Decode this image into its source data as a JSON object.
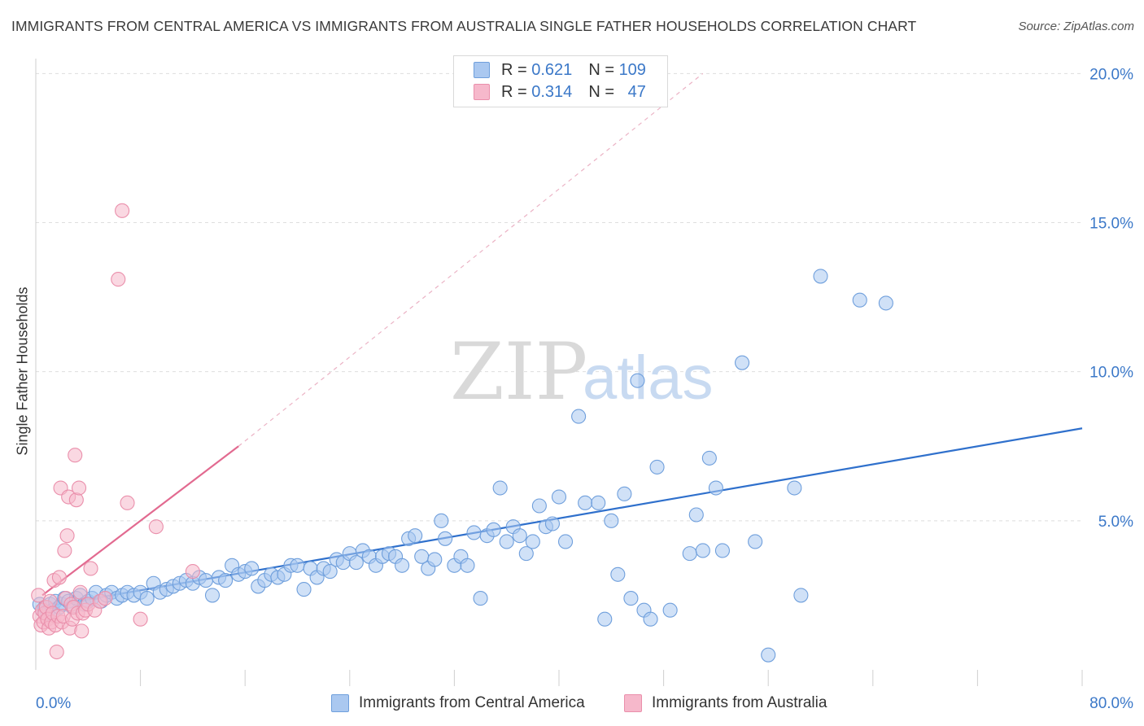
{
  "header": {
    "title": "IMMIGRANTS FROM CENTRAL AMERICA VS IMMIGRANTS FROM AUSTRALIA SINGLE FATHER HOUSEHOLDS CORRELATION CHART",
    "source": "Source: ZipAtlas.com"
  },
  "watermark": {
    "zip": "ZIP",
    "atlas": "atlas"
  },
  "legend": {
    "rows": [
      {
        "r_label": "R = ",
        "r_value": "0.621",
        "n_label": "N = ",
        "n_value": "109",
        "color": "#aac8f0"
      },
      {
        "r_label": "R = ",
        "r_value": "0.314",
        "n_label": "N = ",
        "n_value": "47",
        "color": "#f6b8cb"
      }
    ]
  },
  "chart_data": {
    "type": "scatter",
    "title": "IMMIGRANTS FROM CENTRAL AMERICA VS IMMIGRANTS FROM AUSTRALIA SINGLE FATHER HOUSEHOLDS CORRELATION CHART",
    "xlabel": "",
    "ylabel": "Single Father Households",
    "xlim": [
      0,
      80
    ],
    "ylim": [
      0,
      20.5
    ],
    "x_tick_labels": [
      "0.0%",
      "80.0%"
    ],
    "y_ticks": [
      5,
      10,
      15,
      20
    ],
    "y_tick_labels": [
      "5.0%",
      "10.0%",
      "15.0%",
      "20.0%"
    ],
    "grid": true,
    "legend_position": "top-center",
    "series": [
      {
        "name": "Immigrants from Central America",
        "color": "#6f9fdc",
        "fill": "#aac8f0",
        "line_color": "#2f70cc",
        "trend": {
          "x": [
            0.5,
            80
          ],
          "y": [
            2.1,
            8.1
          ],
          "dashed_extension": false
        },
        "points": [
          [
            0.3,
            2.2
          ],
          [
            0.5,
            2.0
          ],
          [
            0.7,
            2.1
          ],
          [
            0.9,
            1.9
          ],
          [
            1.1,
            2.2
          ],
          [
            1.3,
            2.0
          ],
          [
            1.5,
            2.3
          ],
          [
            1.8,
            2.1
          ],
          [
            2.0,
            2.2
          ],
          [
            2.2,
            2.4
          ],
          [
            2.5,
            2.3
          ],
          [
            2.8,
            2.1
          ],
          [
            3.1,
            2.4
          ],
          [
            3.4,
            2.5
          ],
          [
            3.7,
            2.2
          ],
          [
            4.0,
            2.3
          ],
          [
            4.3,
            2.4
          ],
          [
            4.6,
            2.6
          ],
          [
            5.0,
            2.3
          ],
          [
            5.4,
            2.5
          ],
          [
            5.8,
            2.6
          ],
          [
            6.2,
            2.4
          ],
          [
            6.6,
            2.5
          ],
          [
            7.0,
            2.6
          ],
          [
            7.5,
            2.5
          ],
          [
            8.0,
            2.6
          ],
          [
            8.5,
            2.4
          ],
          [
            9.0,
            2.9
          ],
          [
            9.5,
            2.6
          ],
          [
            10.0,
            2.7
          ],
          [
            10.5,
            2.8
          ],
          [
            11.0,
            2.9
          ],
          [
            11.5,
            3.0
          ],
          [
            12.0,
            2.9
          ],
          [
            12.5,
            3.1
          ],
          [
            13.0,
            3.0
          ],
          [
            13.5,
            2.5
          ],
          [
            14.0,
            3.1
          ],
          [
            14.5,
            3.0
          ],
          [
            15.0,
            3.5
          ],
          [
            15.5,
            3.2
          ],
          [
            16.0,
            3.3
          ],
          [
            16.5,
            3.4
          ],
          [
            17.0,
            2.8
          ],
          [
            17.5,
            3.0
          ],
          [
            18.0,
            3.2
          ],
          [
            18.5,
            3.1
          ],
          [
            19.0,
            3.2
          ],
          [
            19.5,
            3.5
          ],
          [
            20.0,
            3.5
          ],
          [
            20.5,
            2.7
          ],
          [
            21.0,
            3.4
          ],
          [
            21.5,
            3.1
          ],
          [
            22.0,
            3.4
          ],
          [
            22.5,
            3.3
          ],
          [
            23.0,
            3.7
          ],
          [
            23.5,
            3.6
          ],
          [
            24.0,
            3.9
          ],
          [
            24.5,
            3.6
          ],
          [
            25.0,
            4.0
          ],
          [
            25.5,
            3.8
          ],
          [
            26.0,
            3.5
          ],
          [
            26.5,
            3.8
          ],
          [
            27.0,
            3.9
          ],
          [
            27.5,
            3.8
          ],
          [
            28.0,
            3.5
          ],
          [
            28.5,
            4.4
          ],
          [
            29.0,
            4.5
          ],
          [
            29.5,
            3.8
          ],
          [
            30.0,
            3.4
          ],
          [
            30.5,
            3.7
          ],
          [
            31.0,
            5.0
          ],
          [
            31.3,
            4.4
          ],
          [
            32.0,
            3.5
          ],
          [
            32.5,
            3.8
          ],
          [
            33.0,
            3.5
          ],
          [
            33.5,
            4.6
          ],
          [
            34.0,
            2.4
          ],
          [
            34.5,
            4.5
          ],
          [
            35.0,
            4.7
          ],
          [
            35.5,
            6.1
          ],
          [
            36.0,
            4.3
          ],
          [
            36.5,
            4.8
          ],
          [
            37.0,
            4.5
          ],
          [
            37.5,
            3.9
          ],
          [
            38.0,
            4.3
          ],
          [
            38.5,
            5.5
          ],
          [
            39.0,
            4.8
          ],
          [
            39.5,
            4.9
          ],
          [
            40.0,
            5.8
          ],
          [
            40.5,
            4.3
          ],
          [
            41.5,
            8.5
          ],
          [
            42.0,
            5.6
          ],
          [
            43.0,
            5.6
          ],
          [
            43.5,
            1.7
          ],
          [
            44.0,
            5.0
          ],
          [
            44.5,
            3.2
          ],
          [
            45.0,
            5.9
          ],
          [
            45.5,
            2.4
          ],
          [
            46.0,
            9.7
          ],
          [
            46.5,
            2.0
          ],
          [
            47.0,
            1.7
          ],
          [
            47.5,
            6.8
          ],
          [
            48.5,
            2.0
          ],
          [
            50.0,
            3.9
          ],
          [
            50.5,
            5.2
          ],
          [
            51.0,
            4.0
          ],
          [
            51.5,
            7.1
          ],
          [
            52.0,
            6.1
          ],
          [
            52.5,
            4.0
          ],
          [
            54.0,
            10.3
          ],
          [
            55.0,
            4.3
          ],
          [
            56.0,
            0.5
          ],
          [
            58.0,
            6.1
          ],
          [
            58.5,
            2.5
          ],
          [
            60.0,
            13.2
          ],
          [
            63.0,
            12.4
          ],
          [
            65.0,
            12.3
          ]
        ]
      },
      {
        "name": "Immigrants from Australia",
        "color": "#ea8fab",
        "fill": "#f6b8cb",
        "line_color": "#e26a90",
        "trend": {
          "x": [
            0.5,
            15.5
          ],
          "y": [
            2.5,
            7.5
          ],
          "dashed_extension": {
            "x": [
              15.5,
              51
            ],
            "y": [
              7.5,
              20.0
            ]
          }
        },
        "points": [
          [
            0.2,
            2.5
          ],
          [
            0.3,
            1.8
          ],
          [
            0.4,
            1.5
          ],
          [
            0.5,
            2.0
          ],
          [
            0.6,
            1.6
          ],
          [
            0.7,
            1.9
          ],
          [
            0.8,
            2.1
          ],
          [
            0.9,
            1.7
          ],
          [
            1.0,
            1.4
          ],
          [
            1.1,
            2.3
          ],
          [
            1.2,
            1.6
          ],
          [
            1.3,
            1.9
          ],
          [
            1.4,
            3.0
          ],
          [
            1.5,
            1.5
          ],
          [
            1.6,
            0.6
          ],
          [
            1.7,
            1.8
          ],
          [
            1.8,
            3.1
          ],
          [
            1.9,
            6.1
          ],
          [
            2.0,
            1.6
          ],
          [
            2.1,
            1.8
          ],
          [
            2.2,
            4.0
          ],
          [
            2.3,
            2.4
          ],
          [
            2.4,
            4.5
          ],
          [
            2.5,
            5.8
          ],
          [
            2.6,
            1.4
          ],
          [
            2.7,
            2.2
          ],
          [
            2.8,
            1.7
          ],
          [
            2.9,
            2.1
          ],
          [
            3.0,
            7.2
          ],
          [
            3.1,
            5.7
          ],
          [
            3.2,
            1.9
          ],
          [
            3.3,
            6.1
          ],
          [
            3.4,
            2.6
          ],
          [
            3.5,
            1.3
          ],
          [
            3.6,
            1.9
          ],
          [
            3.8,
            2.0
          ],
          [
            4.0,
            2.2
          ],
          [
            4.2,
            3.4
          ],
          [
            4.5,
            2.0
          ],
          [
            4.9,
            2.3
          ],
          [
            5.3,
            2.4
          ],
          [
            6.3,
            13.1
          ],
          [
            6.6,
            15.4
          ],
          [
            7.0,
            5.6
          ],
          [
            8.0,
            1.7
          ],
          [
            9.2,
            4.8
          ],
          [
            12.0,
            3.3
          ]
        ]
      }
    ]
  },
  "bottom_legend": [
    {
      "label": "Immigrants from Central America",
      "color": "#aac8f0"
    },
    {
      "label": "Immigrants from Australia",
      "color": "#f6b8cb"
    }
  ]
}
